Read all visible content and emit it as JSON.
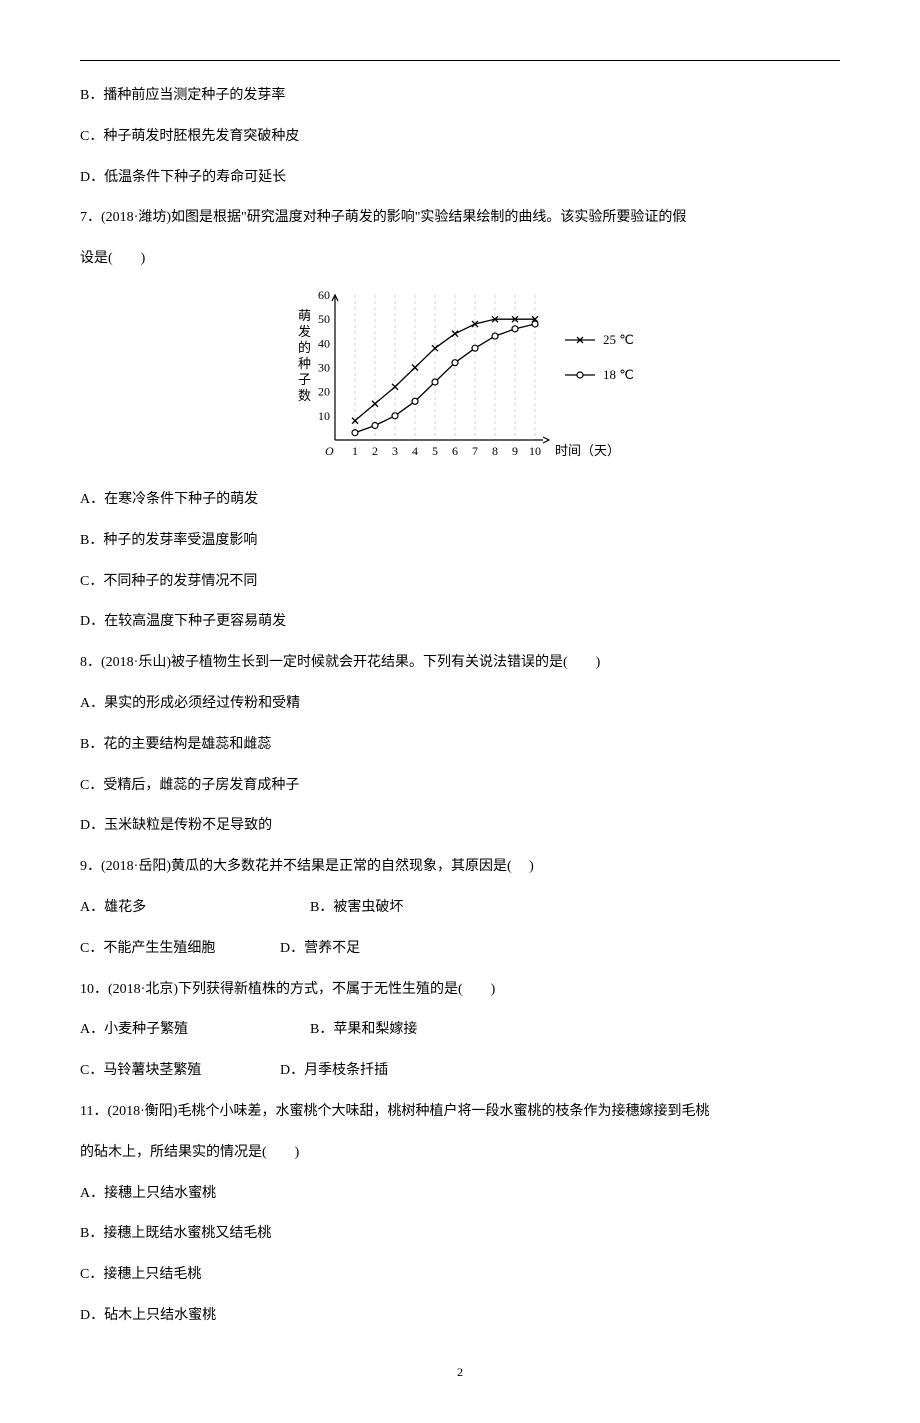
{
  "prev_question_options": {
    "b": "B．播种前应当测定种子的发芽率",
    "c": "C．种子萌发时胚根先发育突破种皮",
    "d": "D．低温条件下种子的寿命可延长"
  },
  "q7": {
    "stem_line1": "7．(2018·潍坊)如图是根据\"研究温度对种子萌发的影响\"实验结果绘制的曲线。该实验所要验证的假",
    "stem_line2": "设是(　　)",
    "optA": "A．在寒冷条件下种子的萌发",
    "optB": "B．种子的发芽率受温度影响",
    "optC": "C．不同种子的发芽情况不同",
    "optD": "D．在较高温度下种子更容易萌发"
  },
  "chart": {
    "type": "line",
    "y_label": "萌发的种子数",
    "x_label": "时间（天）",
    "x_ticks": [
      1,
      2,
      3,
      4,
      5,
      6,
      7,
      8,
      9,
      10
    ],
    "y_ticks": [
      10,
      20,
      30,
      40,
      50,
      60
    ],
    "ylim": [
      0,
      60
    ],
    "xlim": [
      0,
      10
    ],
    "series": [
      {
        "name": "25 ℃",
        "marker": "x",
        "points": [
          [
            1,
            8
          ],
          [
            2,
            15
          ],
          [
            3,
            22
          ],
          [
            4,
            30
          ],
          [
            5,
            38
          ],
          [
            6,
            44
          ],
          [
            7,
            48
          ],
          [
            8,
            50
          ],
          [
            9,
            50
          ],
          [
            10,
            50
          ]
        ]
      },
      {
        "name": "18 ℃",
        "marker": "o",
        "points": [
          [
            1,
            3
          ],
          [
            2,
            6
          ],
          [
            3,
            10
          ],
          [
            4,
            16
          ],
          [
            5,
            24
          ],
          [
            6,
            32
          ],
          [
            7,
            38
          ],
          [
            8,
            43
          ],
          [
            9,
            46
          ],
          [
            10,
            48
          ]
        ]
      }
    ],
    "colors": {
      "axis": "#000000",
      "grid": "#d0d0d0",
      "line": "#000000",
      "text": "#000000",
      "background": "#ffffff"
    },
    "font_size_label": 13,
    "font_size_tick": 12
  },
  "q8": {
    "stem": "8．(2018·乐山)被子植物生长到一定时候就会开花结果。下列有关说法错误的是(　　)",
    "optA": "A．果实的形成必须经过传粉和受精",
    "optB": "B．花的主要结构是雄蕊和雌蕊",
    "optC": "C．受精后，雌蕊的子房发育成种子",
    "optD": "D．玉米缺粒是传粉不足导致的"
  },
  "q9": {
    "stem": "9．(2018·岳阳)黄瓜的大多数花并不结果是正常的自然现象，其原因是(　 )",
    "optA": "A．雄花多",
    "optB": "B．被害虫破坏",
    "optC": "C．不能产生生殖细胞",
    "optD": "D．营养不足"
  },
  "q10": {
    "stem": "10．(2018·北京)下列获得新植株的方式，不属于无性生殖的是(　　)",
    "optA": "A．小麦种子繁殖",
    "optB": "B．苹果和梨嫁接",
    "optC": "C．马铃薯块茎繁殖",
    "optD": "D．月季枝条扦插"
  },
  "q11": {
    "stem_line1": "11．(2018·衡阳)毛桃个小味差，水蜜桃个大味甜，桃树种植户将一段水蜜桃的枝条作为接穗嫁接到毛桃",
    "stem_line2": "的砧木上，所结果实的情况是(　　)",
    "optA": "A．接穗上只结水蜜桃",
    "optB": "B．接穗上既结水蜜桃又结毛桃",
    "optC": "C．接穗上只结毛桃",
    "optD": "D．砧木上只结水蜜桃"
  },
  "page_number": "2"
}
